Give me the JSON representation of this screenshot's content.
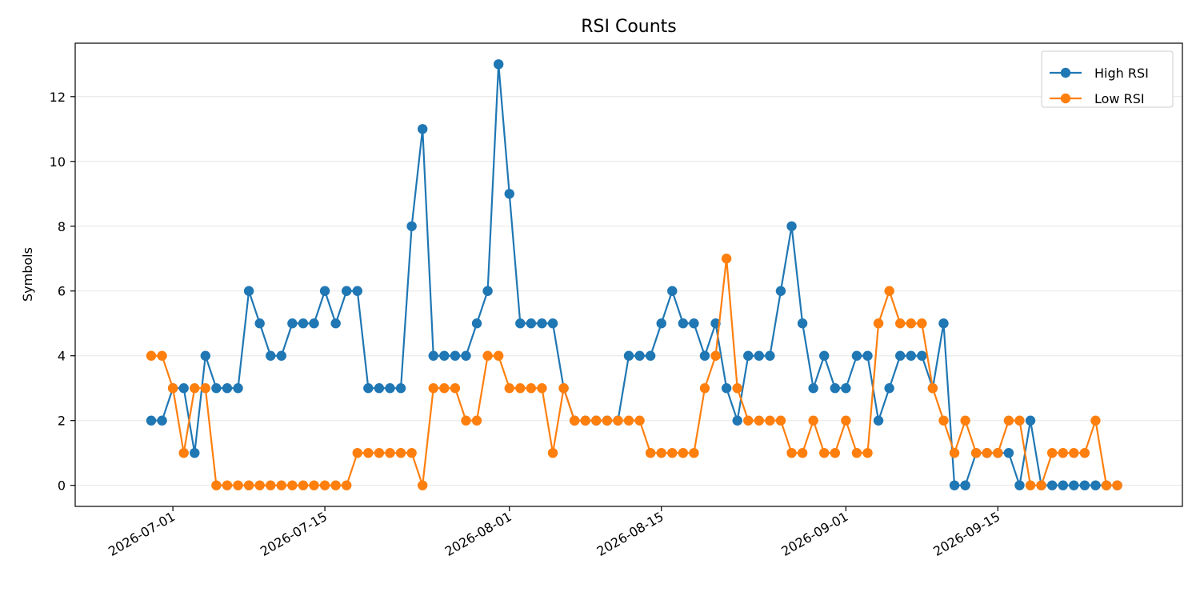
{
  "chart_data": {
    "type": "line",
    "title": "RSI Counts",
    "xlabel": "",
    "ylabel": "Symbols",
    "x_start": "2026-06-29",
    "x_end": "2026-09-25",
    "xlim": [
      "2026-06-22",
      "2026-10-02"
    ],
    "ylim": [
      -0.65,
      13.65
    ],
    "yticks": [
      0,
      2,
      4,
      6,
      8,
      10,
      12
    ],
    "xticks": [
      "2026-07-01",
      "2026-07-15",
      "2026-08-01",
      "2026-08-15",
      "2026-09-01",
      "2026-09-15"
    ],
    "grid": "horizontal",
    "legend": "top-right",
    "series": [
      {
        "name": "High RSI",
        "color": "#1f77b4",
        "values": [
          2,
          2,
          3,
          3,
          1,
          4,
          3,
          3,
          3,
          6,
          5,
          4,
          4,
          5,
          5,
          5,
          6,
          5,
          6,
          6,
          3,
          3,
          3,
          3,
          8,
          11,
          4,
          4,
          4,
          4,
          5,
          6,
          13,
          9,
          5,
          5,
          5,
          5,
          3,
          2,
          2,
          2,
          2,
          2,
          4,
          4,
          4,
          5,
          6,
          5,
          5,
          4,
          5,
          3,
          2,
          4,
          4,
          4,
          6,
          8,
          5,
          3,
          4,
          3,
          3,
          4,
          4,
          2,
          3,
          4,
          4,
          4,
          3,
          5,
          0,
          0,
          1,
          1,
          1,
          1,
          0,
          2,
          0,
          0,
          0,
          0,
          0,
          0,
          0,
          0
        ]
      },
      {
        "name": "Low RSI",
        "color": "#ff7f0e",
        "values": [
          4,
          4,
          3,
          1,
          3,
          3,
          0,
          0,
          0,
          0,
          0,
          0,
          0,
          0,
          0,
          0,
          0,
          0,
          0,
          1,
          1,
          1,
          1,
          1,
          1,
          0,
          3,
          3,
          3,
          2,
          2,
          4,
          4,
          3,
          3,
          3,
          3,
          1,
          3,
          2,
          2,
          2,
          2,
          2,
          2,
          2,
          1,
          1,
          1,
          1,
          1,
          3,
          4,
          7,
          3,
          2,
          2,
          2,
          2,
          1,
          1,
          2,
          1,
          1,
          2,
          1,
          1,
          5,
          6,
          5,
          5,
          5,
          3,
          2,
          1,
          2,
          1,
          1,
          1,
          2,
          2,
          0,
          0,
          1,
          1,
          1,
          1,
          2,
          0,
          0
        ]
      }
    ]
  }
}
